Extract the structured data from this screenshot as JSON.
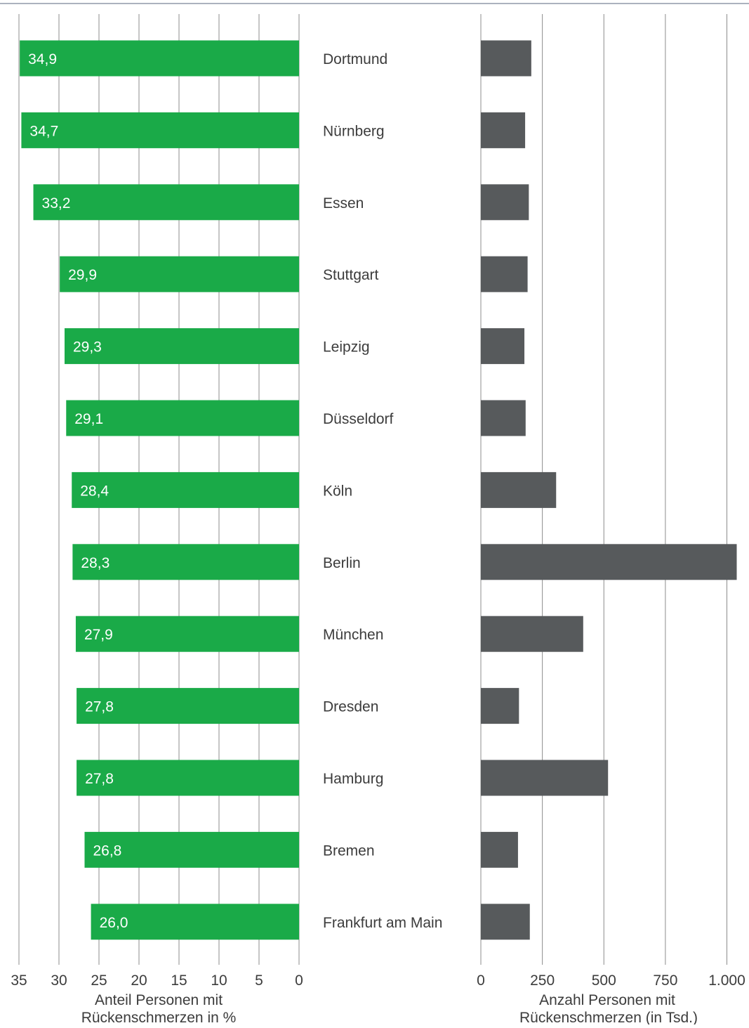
{
  "chart_data": [
    {
      "type": "bar",
      "orientation": "horizontal",
      "direction": "right-to-left",
      "categories": [
        "Dortmund",
        "Nürnberg",
        "Essen",
        "Stuttgart",
        "Leipzig",
        "Düsseldorf",
        "Köln",
        "Berlin",
        "München",
        "Dresden",
        "Hamburg",
        "Bremen",
        "Frankfurt am Main"
      ],
      "values": [
        34.9,
        34.7,
        33.2,
        29.9,
        29.3,
        29.1,
        28.4,
        28.3,
        27.9,
        27.8,
        27.8,
        26.8,
        26.0
      ],
      "value_labels": [
        "34,9",
        "34,7",
        "33,2",
        "29,9",
        "29,3",
        "29,1",
        "28,4",
        "28,3",
        "27,9",
        "27,8",
        "27,8",
        "26,8",
        "26,0"
      ],
      "xlabel": "Anteil Personen mit Rückenschmerzen in %",
      "xlabel_lines": [
        "Anteil Personen mit",
        "Rückenschmerzen in %"
      ],
      "xlim": [
        0,
        35
      ],
      "ticks": [
        35,
        30,
        25,
        20,
        15,
        10,
        5,
        0
      ],
      "tick_labels": [
        "35",
        "30",
        "25",
        "20",
        "15",
        "10",
        "5",
        "0"
      ],
      "grid": true,
      "color": "#1aaa48"
    },
    {
      "type": "bar",
      "orientation": "horizontal",
      "direction": "left-to-right",
      "categories": [
        "Dortmund",
        "Nürnberg",
        "Essen",
        "Stuttgart",
        "Leipzig",
        "Düsseldorf",
        "Köln",
        "Berlin",
        "München",
        "Dresden",
        "Hamburg",
        "Bremen",
        "Frankfurt am Main"
      ],
      "values": [
        205,
        180,
        195,
        190,
        177,
        182,
        306,
        1040,
        416,
        155,
        517,
        151,
        199
      ],
      "xlabel": "Anzahl Personen mit Rückenschmerzen (in Tsd.)",
      "xlabel_lines": [
        "Anzahl Personen mit",
        "Rückenschmerzen (in Tsd.)"
      ],
      "xlim": [
        0,
        1000
      ],
      "ticks": [
        0,
        250,
        500,
        750,
        1000
      ],
      "tick_labels": [
        "0",
        "250",
        "500",
        "750",
        "1.000"
      ],
      "grid": true,
      "color": "#575a5c"
    }
  ],
  "colors": {
    "top_rule": "#8f99a8",
    "grid": "#8c8c8c",
    "text": "#3c3c3c",
    "value_label": "#ffffff"
  }
}
